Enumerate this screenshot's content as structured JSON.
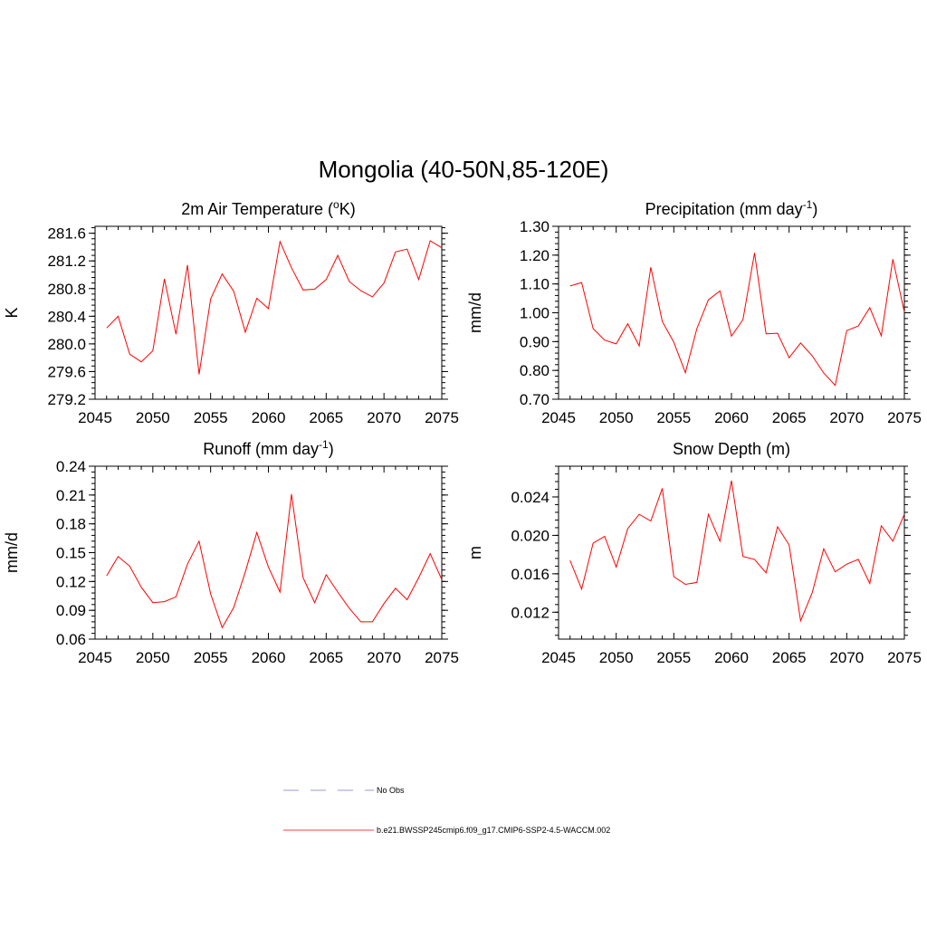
{
  "figure": {
    "title": "Mongolia (40-50N,85-120E)"
  },
  "legend": {
    "entries": [
      {
        "label": "No Obs",
        "color": "#9999dd",
        "style": "dashed"
      },
      {
        "label": "b.e21.BWSSP245cmip6.f09_g17.CMIP6-SSP2-4.5-WACCM.002",
        "color": "#ff4040",
        "style": "solid"
      }
    ]
  },
  "chart_data": [
    {
      "type": "line",
      "title": "2m Air Temperature (",
      "title_sup": "o",
      "title_after": "K)",
      "ylabel": "K",
      "xlim": [
        2045,
        2075
      ],
      "ylim": [
        279.2,
        281.7
      ],
      "xticks": [
        2045,
        2050,
        2055,
        2060,
        2065,
        2070,
        2075
      ],
      "yticks": [
        279.2,
        279.6,
        280.0,
        280.4,
        280.8,
        281.2,
        281.6
      ],
      "yticklabels": [
        "279.2",
        "279.6",
        "280.0",
        "280.4",
        "280.8",
        "281.2",
        "281.6"
      ],
      "series": [
        {
          "color": "#ff0000",
          "x": [
            2046,
            2047,
            2048,
            2049,
            2050,
            2051,
            2052,
            2053,
            2054,
            2055,
            2056,
            2057,
            2058,
            2059,
            2060,
            2061,
            2062,
            2063,
            2064,
            2065,
            2066,
            2067,
            2068,
            2069,
            2070,
            2071,
            2072,
            2073,
            2074,
            2075
          ],
          "values": [
            280.23,
            280.4,
            279.85,
            279.74,
            279.9,
            280.94,
            280.14,
            281.14,
            279.56,
            280.65,
            281.01,
            280.76,
            280.17,
            280.66,
            280.51,
            281.48,
            281.1,
            280.78,
            280.79,
            280.93,
            281.28,
            280.9,
            280.77,
            280.68,
            280.88,
            281.33,
            281.37,
            280.93,
            281.49,
            281.39
          ]
        }
      ]
    },
    {
      "type": "line",
      "title": "Precipitation (mm day",
      "title_sup": "-1",
      "title_after": ")",
      "ylabel": "mm/d",
      "xlim": [
        2045,
        2075
      ],
      "ylim": [
        0.7,
        1.3
      ],
      "xticks": [
        2045,
        2050,
        2055,
        2060,
        2065,
        2070,
        2075
      ],
      "yticks": [
        0.7,
        0.8,
        0.9,
        1.0,
        1.1,
        1.2,
        1.3
      ],
      "yticklabels": [
        "0.70",
        "0.80",
        "0.90",
        "1.00",
        "1.10",
        "1.20",
        "1.30"
      ],
      "series": [
        {
          "color": "#ff0000",
          "x": [
            2046,
            2047,
            2048,
            2049,
            2050,
            2051,
            2052,
            2053,
            2054,
            2055,
            2056,
            2057,
            2058,
            2059,
            2060,
            2061,
            2062,
            2063,
            2064,
            2065,
            2066,
            2067,
            2068,
            2069,
            2070,
            2071,
            2072,
            2073,
            2074,
            2075
          ],
          "values": [
            1.093,
            1.105,
            0.945,
            0.905,
            0.892,
            0.962,
            0.885,
            1.158,
            0.97,
            0.898,
            0.792,
            0.945,
            1.045,
            1.076,
            0.919,
            0.976,
            1.208,
            0.927,
            0.929,
            0.844,
            0.895,
            0.851,
            0.791,
            0.748,
            0.938,
            0.954,
            1.018,
            0.92,
            1.186,
            1.002
          ]
        }
      ]
    },
    {
      "type": "line",
      "title": "Runoff (mm day",
      "title_sup": "-1",
      "title_after": ")",
      "ylabel": "mm/d",
      "xlim": [
        2045,
        2075
      ],
      "ylim": [
        0.06,
        0.24
      ],
      "xticks": [
        2045,
        2050,
        2055,
        2060,
        2065,
        2070,
        2075
      ],
      "yticks": [
        0.06,
        0.09,
        0.12,
        0.15,
        0.18,
        0.21,
        0.24
      ],
      "yticklabels": [
        "0.06",
        "0.09",
        "0.12",
        "0.15",
        "0.18",
        "0.21",
        "0.24"
      ],
      "series": [
        {
          "color": "#ff0000",
          "x": [
            2046,
            2047,
            2048,
            2049,
            2050,
            2051,
            2052,
            2053,
            2054,
            2055,
            2056,
            2057,
            2058,
            2059,
            2060,
            2061,
            2062,
            2063,
            2064,
            2065,
            2066,
            2067,
            2068,
            2069,
            2070,
            2071,
            2072,
            2073,
            2074,
            2075
          ],
          "values": [
            0.126,
            0.146,
            0.136,
            0.114,
            0.098,
            0.099,
            0.104,
            0.138,
            0.162,
            0.107,
            0.072,
            0.093,
            0.13,
            0.171,
            0.135,
            0.109,
            0.211,
            0.124,
            0.098,
            0.127,
            0.109,
            0.092,
            0.078,
            0.078,
            0.097,
            0.113,
            0.101,
            0.124,
            0.149,
            0.122
          ]
        }
      ]
    },
    {
      "type": "line",
      "title": "Snow Depth (m)",
      "title_sup": "",
      "title_after": "",
      "ylabel": "m",
      "xlim": [
        2045,
        2075
      ],
      "ylim": [
        0.0092,
        0.0272
      ],
      "xticks": [
        2045,
        2050,
        2055,
        2060,
        2065,
        2070,
        2075
      ],
      "yticks": [
        0.012,
        0.016,
        0.02,
        0.024
      ],
      "yticklabels": [
        "0.012",
        "0.016",
        "0.020",
        "0.024"
      ],
      "series": [
        {
          "color": "#ff0000",
          "x": [
            2046,
            2047,
            2048,
            2049,
            2050,
            2051,
            2052,
            2053,
            2054,
            2055,
            2056,
            2057,
            2058,
            2059,
            2060,
            2061,
            2062,
            2063,
            2064,
            2065,
            2066,
            2067,
            2068,
            2069,
            2070,
            2071,
            2072,
            2073,
            2074,
            2075
          ],
          "values": [
            0.0174,
            0.0144,
            0.0192,
            0.0199,
            0.0167,
            0.0207,
            0.0222,
            0.0215,
            0.0249,
            0.0157,
            0.0149,
            0.0151,
            0.0222,
            0.0194,
            0.0257,
            0.0178,
            0.0175,
            0.0161,
            0.0209,
            0.019,
            0.0111,
            0.014,
            0.0186,
            0.0162,
            0.017,
            0.0175,
            0.015,
            0.021,
            0.0194,
            0.0222
          ]
        }
      ]
    }
  ]
}
